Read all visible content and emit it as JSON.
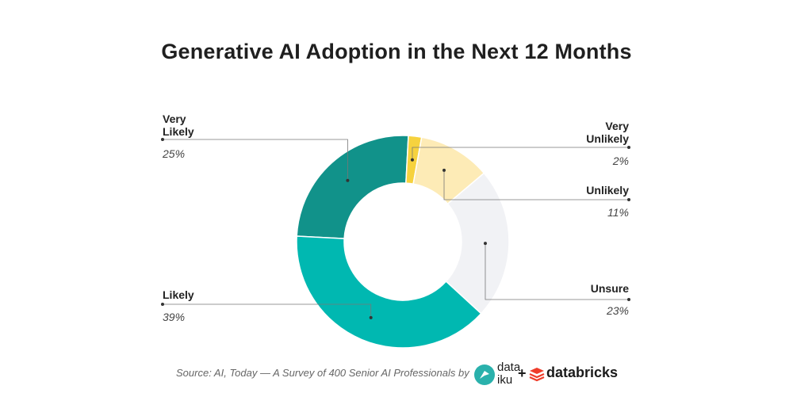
{
  "chart_data": {
    "type": "pie",
    "title": "Generative AI Adoption in the Next 12 Months",
    "donut": true,
    "slices": [
      {
        "label": "Very Likely",
        "label_lines": [
          "Very",
          "Likely"
        ],
        "value": 25,
        "value_label": "25%",
        "color": "#11928a"
      },
      {
        "label": "Very Unlikely",
        "label_lines": [
          "Very",
          "Unlikely"
        ],
        "value": 2,
        "value_label": "2%",
        "color": "#f6d23e"
      },
      {
        "label": "Unlikely",
        "label_lines": [
          "Unlikely"
        ],
        "value": 11,
        "value_label": "11%",
        "color": "#fdebb6"
      },
      {
        "label": "Unsure",
        "label_lines": [
          "Unsure"
        ],
        "value": 23,
        "value_label": "23%",
        "color": "#f1f2f5"
      },
      {
        "label": "Likely",
        "label_lines": [
          "Likely"
        ],
        "value": 39,
        "value_label": "39%",
        "color": "#00b8b1"
      }
    ]
  },
  "footer": {
    "source_text": "Source: AI, Today — A Survey of 400 Senior AI Professionals by"
  },
  "logos": {
    "dataiku_line1": "data",
    "dataiku_line2": "iku",
    "plus": "+",
    "databricks": "databricks",
    "dataiku_color": "#2ab1ac",
    "databricks_color": "#ef3d2b"
  }
}
